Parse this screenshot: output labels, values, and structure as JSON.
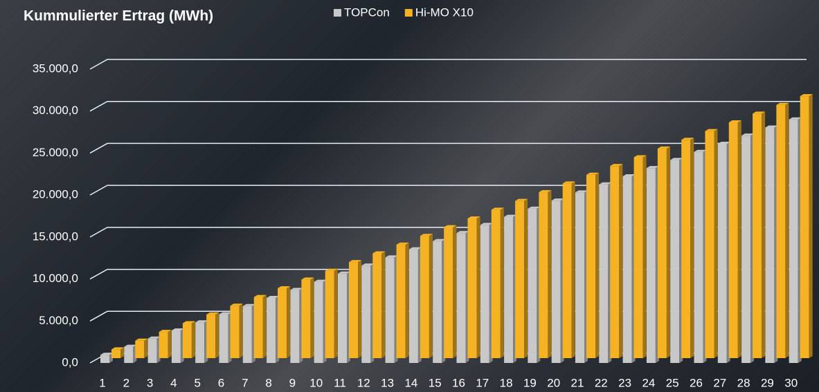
{
  "chart_data": {
    "type": "bar3d",
    "title": "Kummulierter Ertrag (MWh)",
    "categories": [
      "1",
      "2",
      "3",
      "4",
      "5",
      "6",
      "7",
      "8",
      "9",
      "10",
      "11",
      "12",
      "13",
      "14",
      "15",
      "16",
      "17",
      "18",
      "19",
      "20",
      "21",
      "22",
      "23",
      "24",
      "25",
      "26",
      "27",
      "28",
      "29",
      "30"
    ],
    "series": [
      {
        "name": "TOPCon",
        "color": "#c8c8c8",
        "values": [
          970,
          1930,
          2900,
          3870,
          4840,
          5800,
          6770,
          7740,
          8700,
          9670,
          10640,
          11600,
          12570,
          13540,
          14510,
          15470,
          16440,
          17410,
          18370,
          19340,
          20310,
          21270,
          22240,
          23210,
          24180,
          25140,
          26110,
          27080,
          28040,
          29010
        ]
      },
      {
        "name": "Hi-MO X10",
        "color": "#f5b324",
        "values": [
          1040,
          2080,
          3120,
          4160,
          5200,
          6240,
          7280,
          8320,
          9360,
          10400,
          11440,
          12480,
          13520,
          14560,
          15600,
          16640,
          17680,
          18720,
          19760,
          20800,
          21840,
          22880,
          23920,
          24960,
          26000,
          27040,
          28080,
          29120,
          30160,
          31200
        ]
      }
    ],
    "ylim": [
      0,
      35000
    ],
    "yticks": [
      {
        "value": 0,
        "label": "0,0"
      },
      {
        "value": 5000,
        "label": "5.000,0"
      },
      {
        "value": 10000,
        "label": "10.000,0"
      },
      {
        "value": 15000,
        "label": "15.000,0"
      },
      {
        "value": 20000,
        "label": "20.000,0"
      },
      {
        "value": 25000,
        "label": "25.000,0"
      },
      {
        "value": 30000,
        "label": "30.000,0"
      },
      {
        "value": 35000,
        "label": "35.000,0"
      }
    ],
    "grid": true
  }
}
